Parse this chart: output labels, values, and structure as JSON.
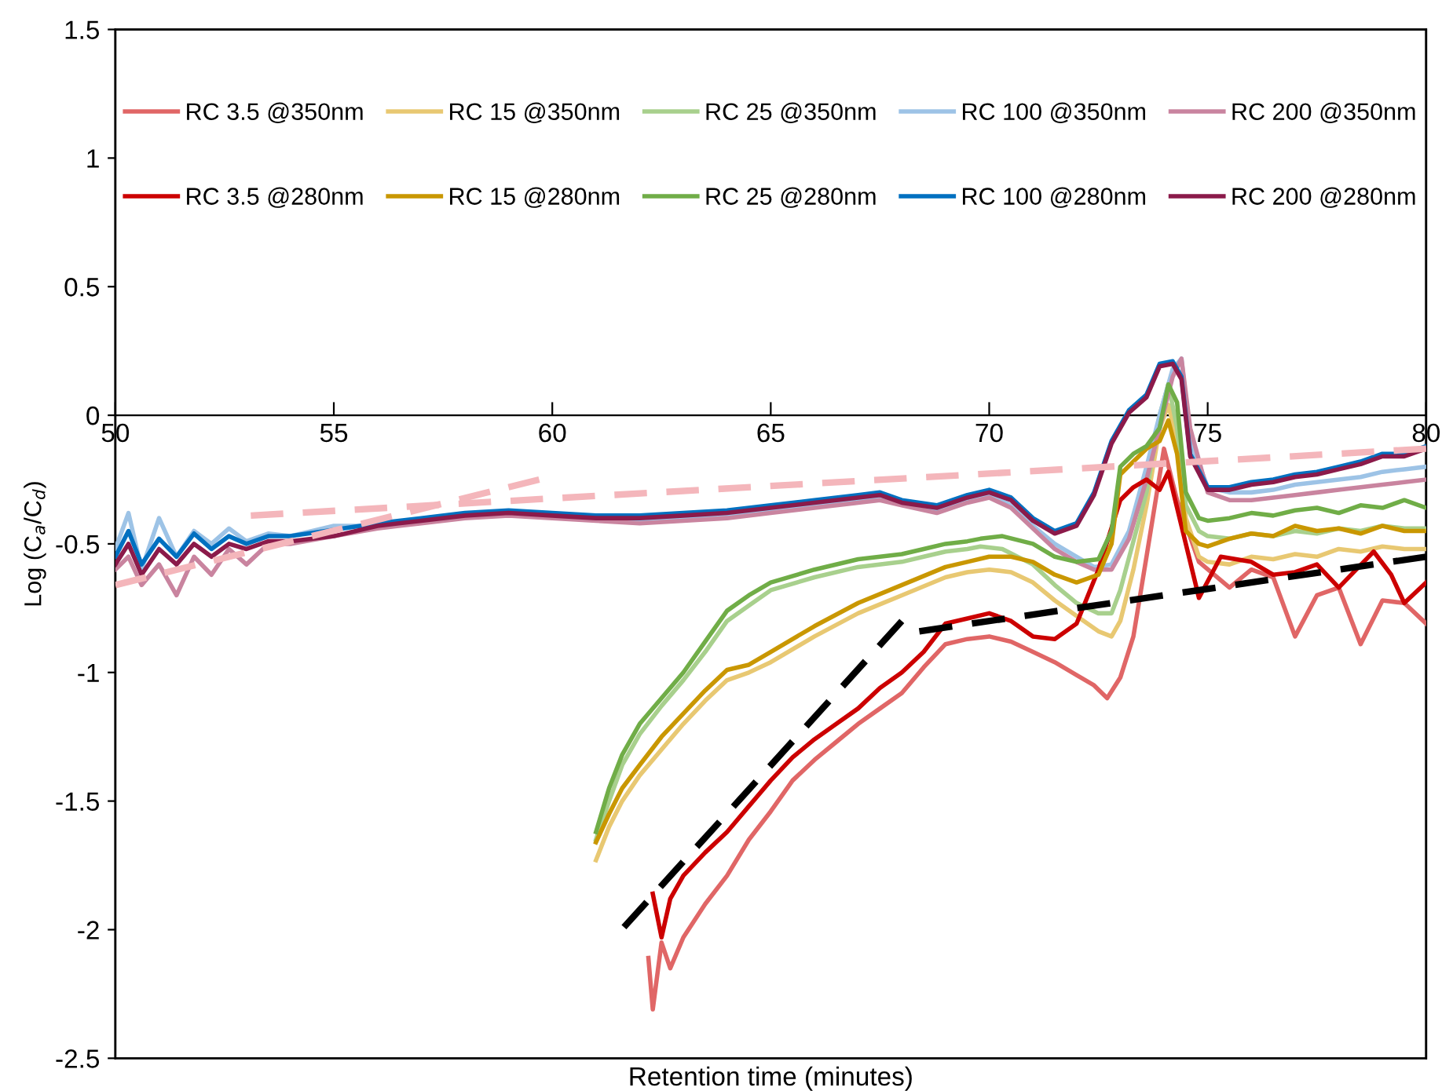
{
  "chart_data": {
    "type": "line",
    "xlabel": "Retention time (minutes)",
    "ylabel": "Log (C$_{a}$/C$_{d}$)",
    "xlim": [
      50,
      80
    ],
    "xticks": [
      50,
      55,
      60,
      65,
      70,
      75,
      80
    ],
    "ylim": [
      -2.5,
      1.5
    ],
    "yticks": [
      -2.5,
      -2,
      -1.5,
      -1,
      -0.5,
      0,
      0.5,
      1,
      1.5
    ],
    "grid": false,
    "legend": "top",
    "marker": "none",
    "line_style": "solid",
    "series": [
      {
        "name": "RC 3.5 @350nm",
        "color": "#e06666",
        "x": [
          62.2,
          62.3,
          62.5,
          62.7,
          63,
          63.5,
          64,
          64.5,
          65,
          65.5,
          66,
          66.5,
          67,
          67.5,
          68,
          68.5,
          69,
          69.5,
          70,
          70.5,
          71,
          71.5,
          72,
          72.4,
          72.7,
          73,
          73.3,
          73.6,
          74.0,
          74.3,
          74.8,
          75.5,
          76,
          76.5,
          77,
          77.5,
          78,
          78.5,
          79,
          79.5,
          80
        ],
        "values": [
          -2.11,
          -2.31,
          -2.05,
          -2.15,
          -2.03,
          -1.9,
          -1.79,
          -1.65,
          -1.54,
          -1.42,
          -1.34,
          -1.27,
          -1.2,
          -1.14,
          -1.08,
          -0.98,
          -0.89,
          -0.87,
          -0.86,
          -0.88,
          -0.92,
          -0.96,
          -1.01,
          -1.05,
          -1.1,
          -1.02,
          -0.86,
          -0.55,
          -0.13,
          -0.33,
          -0.57,
          -0.67,
          -0.6,
          -0.63,
          -0.86,
          -0.7,
          -0.67,
          -0.89,
          -0.72,
          -0.73,
          -0.81
        ]
      },
      {
        "name": "RC 15 @350nm",
        "color": "#e8c872",
        "x": [
          61,
          61.3,
          61.6,
          62,
          62.5,
          63,
          63.5,
          64,
          64.5,
          65,
          66,
          67,
          68,
          69,
          69.5,
          70,
          70.5,
          71,
          71.5,
          72,
          72.5,
          72.8,
          73,
          73.3,
          73.6,
          73.9,
          74.1,
          74.3,
          74.5,
          74.8,
          75,
          75.5,
          76,
          76.5,
          77,
          77.5,
          78,
          78.5,
          79,
          79.5,
          80
        ],
        "values": [
          -1.73,
          -1.6,
          -1.5,
          -1.4,
          -1.3,
          -1.2,
          -1.11,
          -1.03,
          -1.0,
          -0.96,
          -0.86,
          -0.77,
          -0.7,
          -0.63,
          -0.61,
          -0.6,
          -0.61,
          -0.65,
          -0.72,
          -0.78,
          -0.84,
          -0.86,
          -0.8,
          -0.6,
          -0.35,
          -0.05,
          0.04,
          -0.1,
          -0.4,
          -0.55,
          -0.57,
          -0.58,
          -0.55,
          -0.56,
          -0.54,
          -0.55,
          -0.52,
          -0.53,
          -0.51,
          -0.52,
          -0.52
        ]
      },
      {
        "name": "RC 25 @350nm",
        "color": "#a8d08d",
        "x": [
          61,
          61.3,
          61.6,
          62,
          62.5,
          63,
          63.5,
          64,
          64.5,
          65,
          66,
          67,
          68,
          68.5,
          69,
          69.5,
          69.8,
          70.3,
          71,
          71.5,
          72,
          72.5,
          72.8,
          73,
          73.3,
          73.6,
          73.9,
          74.1,
          74.3,
          74.5,
          74.8,
          75,
          75.5,
          76,
          76.5,
          77,
          77.5,
          78,
          78.5,
          79,
          79.5,
          80
        ],
        "values": [
          -1.65,
          -1.5,
          -1.36,
          -1.24,
          -1.13,
          -1.03,
          -0.92,
          -0.8,
          -0.74,
          -0.68,
          -0.63,
          -0.59,
          -0.57,
          -0.55,
          -0.53,
          -0.52,
          -0.51,
          -0.52,
          -0.58,
          -0.66,
          -0.73,
          -0.77,
          -0.77,
          -0.68,
          -0.49,
          -0.3,
          0.0,
          0.12,
          -0.05,
          -0.35,
          -0.45,
          -0.47,
          -0.48,
          -0.46,
          -0.47,
          -0.45,
          -0.46,
          -0.44,
          -0.45,
          -0.43,
          -0.44,
          -0.44
        ]
      },
      {
        "name": "RC 100 @350nm",
        "color": "#9dc3e6",
        "x": [
          50,
          50.3,
          50.6,
          51,
          51.4,
          51.8,
          52.2,
          52.6,
          53,
          53.5,
          54,
          55,
          56,
          57,
          58,
          59,
          60,
          61,
          62,
          63,
          64,
          65,
          66,
          67,
          67.5,
          68,
          68.8,
          69.5,
          70,
          70.5,
          71,
          71.5,
          72,
          72.4,
          72.8,
          73.2,
          73.6,
          73.9,
          74.2,
          74.4,
          74.6,
          75,
          75.5,
          76,
          76.5,
          77,
          77.5,
          78,
          78.5,
          79,
          79.5,
          80
        ],
        "values": [
          -0.52,
          -0.38,
          -0.6,
          -0.4,
          -0.55,
          -0.45,
          -0.5,
          -0.44,
          -0.49,
          -0.46,
          -0.47,
          -0.43,
          -0.43,
          -0.41,
          -0.39,
          -0.38,
          -0.39,
          -0.4,
          -0.41,
          -0.4,
          -0.39,
          -0.37,
          -0.35,
          -0.33,
          -0.32,
          -0.34,
          -0.37,
          -0.33,
          -0.31,
          -0.35,
          -0.43,
          -0.5,
          -0.55,
          -0.59,
          -0.58,
          -0.45,
          -0.2,
          0.0,
          0.18,
          0.22,
          -0.1,
          -0.28,
          -0.3,
          -0.3,
          -0.29,
          -0.27,
          -0.26,
          -0.25,
          -0.24,
          -0.22,
          -0.21,
          -0.2
        ]
      },
      {
        "name": "RC 200 @350nm",
        "color": "#c9849f",
        "x": [
          50,
          50.3,
          50.6,
          51,
          51.4,
          51.8,
          52.2,
          52.6,
          53,
          53.5,
          54,
          55,
          56,
          57,
          58,
          59,
          60,
          61,
          62,
          63,
          64,
          65,
          66,
          67,
          67.5,
          68,
          68.8,
          69.5,
          70,
          70.5,
          71,
          71.5,
          72,
          72.4,
          72.8,
          73.2,
          73.6,
          73.9,
          74.2,
          74.4,
          74.6,
          75,
          75.5,
          76,
          76.5,
          77,
          77.5,
          78,
          78.5,
          79,
          79.5,
          80
        ],
        "values": [
          -0.6,
          -0.55,
          -0.66,
          -0.58,
          -0.7,
          -0.55,
          -0.62,
          -0.52,
          -0.58,
          -0.5,
          -0.5,
          -0.47,
          -0.44,
          -0.42,
          -0.4,
          -0.39,
          -0.4,
          -0.41,
          -0.42,
          -0.41,
          -0.4,
          -0.38,
          -0.36,
          -0.34,
          -0.33,
          -0.35,
          -0.38,
          -0.34,
          -0.32,
          -0.36,
          -0.44,
          -0.52,
          -0.57,
          -0.6,
          -0.6,
          -0.48,
          -0.25,
          -0.05,
          0.15,
          0.22,
          -0.05,
          -0.3,
          -0.33,
          -0.33,
          -0.32,
          -0.31,
          -0.3,
          -0.29,
          -0.28,
          -0.27,
          -0.26,
          -0.25
        ]
      },
      {
        "name": "RC 3.5 @280nm",
        "color": "#cc0000",
        "x": [
          62.3,
          62.5,
          62.7,
          63,
          63.5,
          64,
          64.5,
          65,
          65.5,
          66,
          66.5,
          67,
          67.5,
          68,
          68.5,
          69,
          69.5,
          70,
          70.5,
          71,
          71.5,
          72,
          72.5,
          73,
          73.3,
          73.6,
          73.9,
          74.1,
          74.4,
          74.8,
          75.3,
          76,
          76.5,
          77,
          77.5,
          78,
          78.4,
          78.8,
          79.2,
          79.5,
          80
        ],
        "values": [
          -1.86,
          -2.03,
          -1.88,
          -1.79,
          -1.7,
          -1.62,
          -1.52,
          -1.42,
          -1.33,
          -1.26,
          -1.2,
          -1.14,
          -1.06,
          -1.0,
          -0.92,
          -0.81,
          -0.79,
          -0.77,
          -0.8,
          -0.86,
          -0.87,
          -0.81,
          -0.6,
          -0.33,
          -0.28,
          -0.25,
          -0.29,
          -0.22,
          -0.43,
          -0.71,
          -0.55,
          -0.57,
          -0.62,
          -0.61,
          -0.58,
          -0.67,
          -0.6,
          -0.53,
          -0.62,
          -0.73,
          -0.65
        ]
      },
      {
        "name": "RC 15 @280nm",
        "color": "#c99700",
        "x": [
          61,
          61.3,
          61.6,
          62,
          62.5,
          63,
          63.5,
          64,
          64.5,
          65,
          66,
          67,
          68,
          69,
          69.5,
          70,
          70.5,
          71,
          71.5,
          72,
          72.5,
          72.8,
          73,
          73.3,
          73.6,
          73.9,
          74.1,
          74.3,
          74.5,
          74.8,
          75,
          75.5,
          76,
          76.5,
          77,
          77.5,
          78,
          78.5,
          79,
          79.5,
          80
        ],
        "values": [
          -1.66,
          -1.55,
          -1.45,
          -1.36,
          -1.25,
          -1.16,
          -1.07,
          -0.99,
          -0.97,
          -0.92,
          -0.82,
          -0.73,
          -0.66,
          -0.59,
          -0.57,
          -0.55,
          -0.55,
          -0.57,
          -0.62,
          -0.65,
          -0.62,
          -0.5,
          -0.23,
          -0.18,
          -0.13,
          -0.1,
          -0.02,
          -0.15,
          -0.45,
          -0.5,
          -0.51,
          -0.48,
          -0.46,
          -0.47,
          -0.43,
          -0.45,
          -0.44,
          -0.46,
          -0.43,
          -0.45,
          -0.45
        ]
      },
      {
        "name": "RC 25 @280nm",
        "color": "#70ad47",
        "x": [
          61,
          61.3,
          61.6,
          62,
          62.5,
          63,
          63.5,
          64,
          64.5,
          65,
          66,
          67,
          68,
          68.5,
          69,
          69.5,
          69.8,
          70.3,
          71,
          71.5,
          72,
          72.5,
          72.8,
          73,
          73.3,
          73.6,
          73.9,
          74.1,
          74.3,
          74.5,
          74.8,
          75,
          75.5,
          76,
          76.5,
          77,
          77.5,
          78,
          78.5,
          79,
          79.5,
          80
        ],
        "values": [
          -1.62,
          -1.45,
          -1.32,
          -1.2,
          -1.1,
          -1.0,
          -0.88,
          -0.76,
          -0.7,
          -0.65,
          -0.6,
          -0.56,
          -0.54,
          -0.52,
          -0.5,
          -0.49,
          -0.48,
          -0.47,
          -0.5,
          -0.55,
          -0.57,
          -0.56,
          -0.45,
          -0.2,
          -0.15,
          -0.12,
          -0.05,
          0.12,
          0.05,
          -0.3,
          -0.4,
          -0.41,
          -0.4,
          -0.38,
          -0.39,
          -0.37,
          -0.36,
          -0.38,
          -0.35,
          -0.36,
          -0.33,
          -0.36
        ]
      },
      {
        "name": "RC 100 @280nm",
        "color": "#0070c0",
        "x": [
          50,
          50.3,
          50.6,
          51,
          51.4,
          51.8,
          52.2,
          52.6,
          53,
          53.5,
          54,
          55,
          56,
          57,
          58,
          59,
          60,
          61,
          62,
          63,
          64,
          65,
          66,
          67,
          67.5,
          68,
          68.8,
          69.5,
          70,
          70.5,
          71,
          71.5,
          72,
          72.4,
          72.8,
          73.2,
          73.6,
          73.9,
          74.2,
          74.4,
          74.6,
          75,
          75.5,
          76,
          76.5,
          77,
          77.5,
          78,
          78.5,
          79,
          79.5,
          80
        ],
        "values": [
          -0.55,
          -0.45,
          -0.58,
          -0.48,
          -0.55,
          -0.46,
          -0.52,
          -0.47,
          -0.5,
          -0.47,
          -0.47,
          -0.445,
          -0.42,
          -0.4,
          -0.38,
          -0.37,
          -0.38,
          -0.39,
          -0.39,
          -0.38,
          -0.37,
          -0.35,
          -0.33,
          -0.31,
          -0.3,
          -0.33,
          -0.35,
          -0.31,
          -0.29,
          -0.32,
          -0.4,
          -0.45,
          -0.42,
          -0.3,
          -0.1,
          0.02,
          0.08,
          0.2,
          0.21,
          0.15,
          -0.15,
          -0.28,
          -0.28,
          -0.26,
          -0.25,
          -0.23,
          -0.22,
          -0.2,
          -0.18,
          -0.15,
          -0.15,
          -0.12
        ]
      },
      {
        "name": "RC 200 @280nm",
        "color": "#8b1a4a",
        "x": [
          50,
          50.3,
          50.6,
          51,
          51.4,
          51.8,
          52.2,
          52.6,
          53,
          53.5,
          54,
          55,
          56,
          57,
          58,
          59,
          60,
          61,
          62,
          63,
          64,
          65,
          66,
          67,
          67.5,
          68,
          68.8,
          69.5,
          70,
          70.5,
          71,
          71.5,
          72,
          72.4,
          72.8,
          73.2,
          73.6,
          73.9,
          74.2,
          74.4,
          74.6,
          75,
          75.5,
          76,
          76.5,
          77,
          77.5,
          78,
          78.5,
          79,
          79.5,
          80
        ],
        "values": [
          -0.58,
          -0.5,
          -0.62,
          -0.52,
          -0.58,
          -0.5,
          -0.55,
          -0.5,
          -0.52,
          -0.49,
          -0.49,
          -0.47,
          -0.43,
          -0.41,
          -0.39,
          -0.38,
          -0.39,
          -0.4,
          -0.4,
          -0.39,
          -0.38,
          -0.36,
          -0.34,
          -0.32,
          -0.31,
          -0.34,
          -0.36,
          -0.32,
          -0.3,
          -0.33,
          -0.41,
          -0.46,
          -0.43,
          -0.31,
          -0.11,
          0.01,
          0.07,
          0.19,
          0.2,
          0.14,
          -0.16,
          -0.29,
          -0.29,
          -0.27,
          -0.26,
          -0.24,
          -0.23,
          -0.21,
          -0.19,
          -0.16,
          -0.16,
          -0.13
        ]
      },
      {
        "color": "#f4b6bb",
        "line_style": "dashed",
        "x": [
          50,
          59.7
        ],
        "values": [
          -0.66,
          -0.25
        ]
      },
      {
        "color": "#f4b6bb",
        "line_style": "dashed",
        "x": [
          53.1,
          80
        ],
        "values": [
          -0.39,
          -0.13
        ]
      },
      {
        "color": "#000000",
        "line_style": "dashed",
        "x": [
          61.64,
          68.0
        ],
        "values": [
          -1.99,
          -0.8
        ]
      },
      {
        "color": "#000000",
        "line_style": "dashed",
        "x": [
          68.4,
          80
        ],
        "values": [
          -0.84,
          -0.55
        ]
      }
    ]
  }
}
